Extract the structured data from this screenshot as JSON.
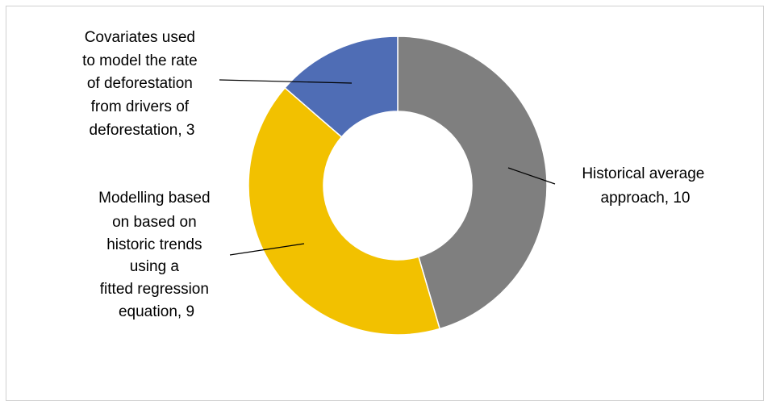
{
  "chart_data": {
    "type": "pie",
    "style": "donut",
    "series": [
      {
        "categories": [
          "Historical average approach",
          "Modelling based on based on historic trends using a fitted regression equation",
          "Covariates used to model the rate of deforestation from drivers of deforestation"
        ],
        "values": [
          10,
          9,
          3
        ],
        "colors": [
          "#7f7f7f",
          "#f2c100",
          "#4f6db5"
        ]
      }
    ],
    "data_labels": [
      {
        "lines": [
          "Historical average",
          "approach, 10"
        ]
      },
      {
        "lines": [
          "Modelling based",
          "on based on",
          "historic trends",
          "using a",
          "fitted regression",
          "equation, 9"
        ]
      },
      {
        "lines": [
          "Covariates used",
          "to model the rate",
          "of deforestation",
          "from drivers of",
          "deforestation, 3"
        ]
      }
    ],
    "legend": "none",
    "title": ""
  }
}
